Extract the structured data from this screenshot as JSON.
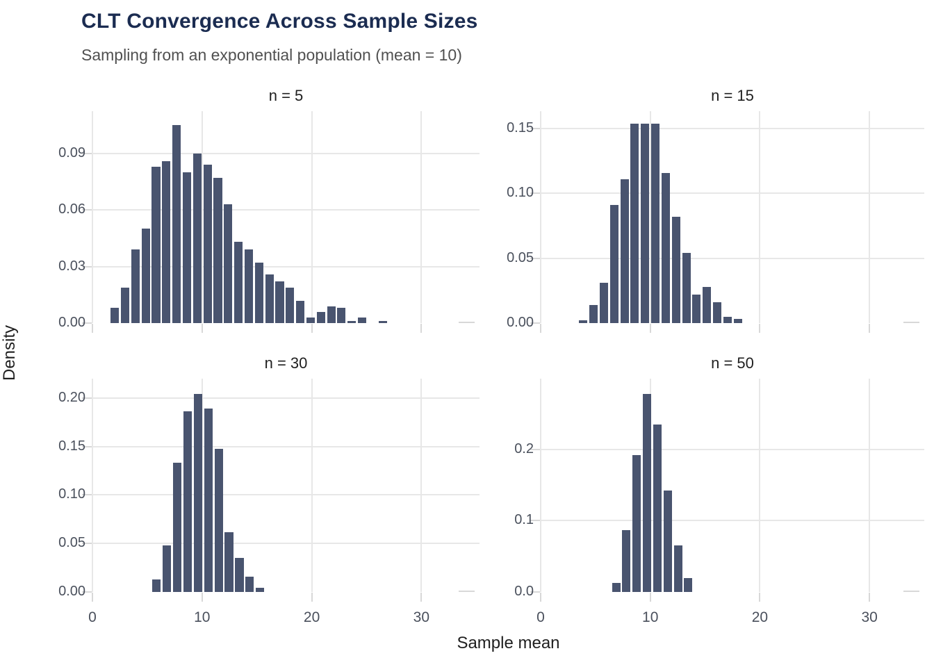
{
  "header": {
    "title": "CLT Convergence Across Sample Sizes",
    "subtitle": "Sampling from an exponential population (mean = 10)"
  },
  "chart_data": {
    "type": "bar",
    "subtype": "faceted-histogram",
    "title": "CLT Convergence Across Sample Sizes",
    "subtitle": "Sampling from an exponential population (mean = 10)",
    "xlabel": "Sample mean",
    "ylabel": "Density",
    "grid": "major-only",
    "legend": "none",
    "x_ticks": [
      0,
      10,
      20,
      30
    ],
    "colors": {
      "bar_fill": "#49546F",
      "title_text": "#1B2C51",
      "subtitle_text": "#505050",
      "axis_text": "#4A505C",
      "strip_text": "#1F1F1F",
      "gridline": "#E7E7E7",
      "tick_mark": "#D8D8D8",
      "background": "#FFFFFF"
    },
    "panels": [
      {
        "facet": "n = 5",
        "ylim": [
          0,
          0.1125
        ],
        "xlim": [
          0,
          35.3
        ],
        "y_tick_labels": [
          "0.00",
          "0.03",
          "0.06",
          "0.09"
        ],
        "y_tick_values": [
          0,
          0.03,
          0.06,
          0.09
        ],
        "bin_start": 1.65,
        "bin_width": 0.94,
        "densities": [
          0.008,
          0.019,
          0.039,
          0.05,
          0.083,
          0.086,
          0.105,
          0.08,
          0.09,
          0.084,
          0.077,
          0.063,
          0.043,
          0.039,
          0.032,
          0.026,
          0.022,
          0.019,
          0.012,
          0.003,
          0.006,
          0.009,
          0.008,
          0.001,
          0.003,
          0,
          0.001
        ]
      },
      {
        "facet": "n = 15",
        "ylim": [
          0,
          0.1635
        ],
        "xlim": [
          0,
          35.0
        ],
        "y_tick_labels": [
          "0.00",
          "0.05",
          "0.10",
          "0.15"
        ],
        "y_tick_values": [
          0,
          0.05,
          0.1,
          0.15
        ],
        "bin_start": 3.5,
        "bin_width": 0.94,
        "densities": [
          0.002,
          0.014,
          0.031,
          0.091,
          0.111,
          0.154,
          0.154,
          0.154,
          0.116,
          0.082,
          0.054,
          0.022,
          0.028,
          0.016,
          0.005,
          0.003
        ]
      },
      {
        "facet": "n = 30",
        "ylim": [
          0,
          0.22
        ],
        "xlim": [
          0,
          35.3
        ],
        "y_tick_labels": [
          "0.00",
          "0.05",
          "0.10",
          "0.15",
          "0.20"
        ],
        "y_tick_values": [
          0,
          0.05,
          0.1,
          0.15,
          0.2
        ],
        "bin_start": 5.45,
        "bin_width": 0.945,
        "densities": [
          0.013,
          0.048,
          0.133,
          0.186,
          0.204,
          0.189,
          0.148,
          0.062,
          0.035,
          0.016,
          0.004
        ]
      },
      {
        "facet": "n = 50",
        "ylim": [
          0,
          0.2995
        ],
        "xlim": [
          0,
          35.0
        ],
        "y_tick_labels": [
          "0.0",
          "0.1",
          "0.2"
        ],
        "y_tick_values": [
          0,
          0.1,
          0.2
        ],
        "bin_start": 6.5,
        "bin_width": 0.94,
        "densities": [
          0.013,
          0.087,
          0.192,
          0.278,
          0.235,
          0.142,
          0.065,
          0.02
        ]
      }
    ]
  }
}
